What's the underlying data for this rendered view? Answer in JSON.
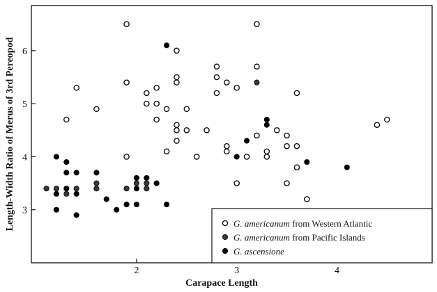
{
  "chart_data": {
    "type": "scatter",
    "xlabel": "Carapace Length",
    "ylabel": "Length-Width Ratio of Merus of 3rd Pereopod",
    "xlim": [
      0.95,
      4.95
    ],
    "ylim": [
      2.0,
      6.85
    ],
    "x_ticks": [
      2,
      3,
      4
    ],
    "y_ticks": [
      3,
      4,
      5,
      6
    ],
    "grid": false,
    "legend_position": "bottom-right",
    "series": [
      {
        "name": "G. americanum from Western Atlantic",
        "marker": "open-circle",
        "color": "#111111",
        "points": [
          [
            1.3,
            4.7
          ],
          [
            1.4,
            5.3
          ],
          [
            1.6,
            4.9
          ],
          [
            1.9,
            6.5
          ],
          [
            1.9,
            5.4
          ],
          [
            1.9,
            4.0
          ],
          [
            2.1,
            5.2
          ],
          [
            2.1,
            5.0
          ],
          [
            2.2,
            5.3
          ],
          [
            2.2,
            5.0
          ],
          [
            2.2,
            4.7
          ],
          [
            2.3,
            4.9
          ],
          [
            2.3,
            4.1
          ],
          [
            2.4,
            6.0
          ],
          [
            2.4,
            5.5
          ],
          [
            2.4,
            5.4
          ],
          [
            2.4,
            4.6
          ],
          [
            2.4,
            4.5
          ],
          [
            2.4,
            4.3
          ],
          [
            2.5,
            4.9
          ],
          [
            2.5,
            4.5
          ],
          [
            2.6,
            4.0
          ],
          [
            2.7,
            4.5
          ],
          [
            2.8,
            5.7
          ],
          [
            2.8,
            5.5
          ],
          [
            2.8,
            5.2
          ],
          [
            2.9,
            5.4
          ],
          [
            2.9,
            4.2
          ],
          [
            2.9,
            4.1
          ],
          [
            3.0,
            5.3
          ],
          [
            3.0,
            3.5
          ],
          [
            3.1,
            4.0
          ],
          [
            3.2,
            6.5
          ],
          [
            3.2,
            5.7
          ],
          [
            3.2,
            4.4
          ],
          [
            3.3,
            4.1
          ],
          [
            3.3,
            4.0
          ],
          [
            3.4,
            4.5
          ],
          [
            3.5,
            4.4
          ],
          [
            3.5,
            4.2
          ],
          [
            3.5,
            3.5
          ],
          [
            3.6,
            5.2
          ],
          [
            3.6,
            4.2
          ],
          [
            3.6,
            3.8
          ],
          [
            3.7,
            3.2
          ],
          [
            4.4,
            4.6
          ],
          [
            4.5,
            4.7
          ]
        ]
      },
      {
        "name": "G. americanum from Pacific Islands",
        "marker": "gray-filled-circle",
        "color": "#3a3a3a",
        "points": [
          [
            1.1,
            3.4
          ],
          [
            1.2,
            3.4
          ],
          [
            1.3,
            3.3
          ],
          [
            1.4,
            3.4
          ],
          [
            1.6,
            3.5
          ],
          [
            1.6,
            3.4
          ],
          [
            1.9,
            3.4
          ],
          [
            2.0,
            3.5
          ],
          [
            2.1,
            3.4
          ],
          [
            2.1,
            3.5
          ],
          [
            3.2,
            5.4
          ]
        ]
      },
      {
        "name": "G. ascensione",
        "marker": "filled-circle",
        "color": "#000000",
        "points": [
          [
            1.2,
            4.0
          ],
          [
            1.2,
            3.3
          ],
          [
            1.2,
            3.0
          ],
          [
            1.3,
            3.9
          ],
          [
            1.3,
            3.7
          ],
          [
            1.3,
            3.4
          ],
          [
            1.4,
            3.7
          ],
          [
            1.4,
            3.3
          ],
          [
            1.4,
            2.9
          ],
          [
            1.6,
            3.7
          ],
          [
            1.7,
            3.2
          ],
          [
            1.8,
            3.0
          ],
          [
            1.9,
            3.1
          ],
          [
            2.0,
            3.6
          ],
          [
            2.0,
            3.4
          ],
          [
            2.0,
            3.1
          ],
          [
            2.1,
            3.6
          ],
          [
            2.2,
            3.5
          ],
          [
            2.3,
            6.1
          ],
          [
            2.3,
            3.1
          ],
          [
            3.0,
            4.0
          ],
          [
            3.1,
            4.3
          ],
          [
            3.3,
            4.7
          ],
          [
            3.3,
            4.6
          ],
          [
            3.7,
            3.9
          ],
          [
            4.1,
            3.8
          ]
        ]
      }
    ],
    "legend": {
      "entries": [
        {
          "italic": "G. americanum",
          "rest": " from Western Atlantic"
        },
        {
          "italic": "G. americanum",
          "rest": " from Pacific Islands"
        },
        {
          "italic": "G. ascensione",
          "rest": ""
        }
      ]
    }
  }
}
